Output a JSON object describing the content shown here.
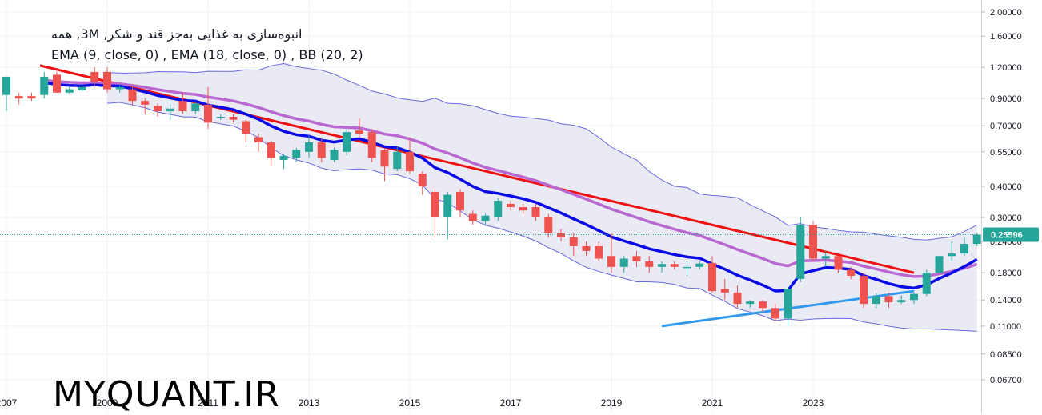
{
  "legend": {
    "title_line": "انبوه‌سازی به غذایی به‌جز قند و شکر, 3M, همه",
    "indicators_line": "EMA (9, close, 0) , EMA (18, close, 0) , BB (20, 2)"
  },
  "watermark": "MYQUANT.IR",
  "colors": {
    "up": "#26a69a",
    "down": "#ef5350",
    "ema_fast": "#0a0ae6",
    "ema_slow": "#b868d0",
    "bb_band": "#6a6ae0",
    "bb_fill": "#e6e6f2",
    "trend_resistance": "#ee1111",
    "trend_support": "#3399ee",
    "price_badge": "#26a69a",
    "grid": "#eef0f3"
  },
  "chart_data": {
    "type": "candlestick",
    "y_scale": "log",
    "ylim": [
      0.06,
      2.2
    ],
    "y_ticks": [
      "2.00000",
      "1.60000",
      "1.20000",
      "0.90000",
      "0.70000",
      "0.55000",
      "0.40000",
      "0.30000",
      "0.24000",
      "0.18000",
      "0.14000",
      "0.11000",
      "0.08500",
      "0.06700"
    ],
    "x_ticks": [
      "2007",
      "2009",
      "2011",
      "2013",
      "2015",
      "2017",
      "2019",
      "2021",
      "2023"
    ],
    "last_price_label": "0.25596",
    "last_price": 0.25596,
    "x_start": "2007-01",
    "period_months": 3,
    "candles": [
      [
        0.93,
        1.1,
        0.8,
        1.1
      ],
      [
        0.92,
        0.9,
        0.85,
        0.95
      ],
      [
        0.92,
        0.9,
        0.88,
        0.95
      ],
      [
        0.93,
        1.1,
        0.9,
        1.15
      ],
      [
        1.12,
        0.95,
        0.95,
        1.15
      ],
      [
        0.95,
        0.98,
        0.94,
        1.0
      ],
      [
        0.97,
        1.0,
        0.96,
        1.02
      ],
      [
        1.15,
        1.05,
        1.0,
        1.2
      ],
      [
        1.15,
        0.98,
        0.95,
        1.2
      ],
      [
        0.98,
        1.0,
        0.95,
        1.02
      ],
      [
        0.98,
        0.88,
        0.85,
        1.0
      ],
      [
        0.88,
        0.85,
        0.78,
        0.9
      ],
      [
        0.84,
        0.8,
        0.76,
        0.86
      ],
      [
        0.8,
        0.82,
        0.74,
        0.85
      ],
      [
        0.88,
        0.8,
        0.78,
        0.95
      ],
      [
        0.8,
        0.86,
        0.78,
        0.88
      ],
      [
        0.85,
        0.72,
        0.68,
        1.0
      ],
      [
        0.75,
        0.76,
        0.74,
        0.78
      ],
      [
        0.76,
        0.74,
        0.72,
        0.78
      ],
      [
        0.73,
        0.65,
        0.6,
        0.74
      ],
      [
        0.63,
        0.6,
        0.55,
        0.65
      ],
      [
        0.6,
        0.52,
        0.48,
        0.61
      ],
      [
        0.51,
        0.53,
        0.47,
        0.54
      ],
      [
        0.52,
        0.56,
        0.5,
        0.57
      ],
      [
        0.55,
        0.6,
        0.52,
        0.64
      ],
      [
        0.6,
        0.52,
        0.5,
        0.62
      ],
      [
        0.51,
        0.56,
        0.5,
        0.57
      ],
      [
        0.55,
        0.66,
        0.53,
        0.68
      ],
      [
        0.67,
        0.65,
        0.63,
        0.75
      ],
      [
        0.66,
        0.52,
        0.5,
        0.68
      ],
      [
        0.56,
        0.48,
        0.42,
        0.57
      ],
      [
        0.47,
        0.55,
        0.46,
        0.58
      ],
      [
        0.55,
        0.46,
        0.45,
        0.63
      ],
      [
        0.45,
        0.4,
        0.37,
        0.46
      ],
      [
        0.38,
        0.3,
        0.25,
        0.39
      ],
      [
        0.3,
        0.37,
        0.245,
        0.38
      ],
      [
        0.38,
        0.32,
        0.3,
        0.39
      ],
      [
        0.31,
        0.29,
        0.28,
        0.32
      ],
      [
        0.29,
        0.305,
        0.28,
        0.31
      ],
      [
        0.3,
        0.35,
        0.29,
        0.36
      ],
      [
        0.34,
        0.33,
        0.32,
        0.35
      ],
      [
        0.33,
        0.32,
        0.31,
        0.34
      ],
      [
        0.33,
        0.3,
        0.29,
        0.34
      ],
      [
        0.3,
        0.26,
        0.25,
        0.31
      ],
      [
        0.26,
        0.25,
        0.24,
        0.27
      ],
      [
        0.25,
        0.23,
        0.21,
        0.26
      ],
      [
        0.23,
        0.22,
        0.21,
        0.24
      ],
      [
        0.23,
        0.205,
        0.2,
        0.24
      ],
      [
        0.21,
        0.19,
        0.18,
        0.26
      ],
      [
        0.19,
        0.205,
        0.18,
        0.21
      ],
      [
        0.21,
        0.2,
        0.19,
        0.22
      ],
      [
        0.2,
        0.19,
        0.18,
        0.21
      ],
      [
        0.19,
        0.195,
        0.18,
        0.2
      ],
      [
        0.195,
        0.19,
        0.185,
        0.2
      ],
      [
        0.19,
        0.19,
        0.175,
        0.2
      ],
      [
        0.19,
        0.196,
        0.185,
        0.2
      ],
      [
        0.197,
        0.152,
        0.15,
        0.21
      ],
      [
        0.155,
        0.15,
        0.14,
        0.17
      ],
      [
        0.15,
        0.135,
        0.13,
        0.16
      ],
      [
        0.135,
        0.138,
        0.13,
        0.14
      ],
      [
        0.138,
        0.13,
        0.125,
        0.14
      ],
      [
        0.13,
        0.118,
        0.115,
        0.135
      ],
      [
        0.118,
        0.155,
        0.11,
        0.16
      ],
      [
        0.17,
        0.28,
        0.165,
        0.3
      ],
      [
        0.28,
        0.205,
        0.2,
        0.29
      ],
      [
        0.205,
        0.21,
        0.19,
        0.22
      ],
      [
        0.21,
        0.185,
        0.18,
        0.21
      ],
      [
        0.185,
        0.175,
        0.17,
        0.19
      ],
      [
        0.175,
        0.135,
        0.13,
        0.18
      ],
      [
        0.135,
        0.145,
        0.13,
        0.15
      ],
      [
        0.145,
        0.137,
        0.13,
        0.15
      ],
      [
        0.137,
        0.14,
        0.135,
        0.146
      ],
      [
        0.14,
        0.148,
        0.135,
        0.15
      ],
      [
        0.148,
        0.18,
        0.145,
        0.185
      ],
      [
        0.18,
        0.21,
        0.18,
        0.21
      ],
      [
        0.21,
        0.215,
        0.2,
        0.24
      ],
      [
        0.215,
        0.235,
        0.21,
        0.25
      ],
      [
        0.235,
        0.256,
        0.23,
        0.26
      ]
    ],
    "series": [
      {
        "values": [],
        "type": "ema_fast"
      },
      {
        "values": [],
        "type": "ema_slow"
      }
    ],
    "trendlines": [
      {
        "kind": "resistance",
        "from": [
          "2007-09",
          1.22
        ],
        "to": [
          "2025-01",
          0.18
        ]
      },
      {
        "kind": "support",
        "from": [
          "2020-01",
          0.11
        ],
        "to": [
          "2025-01",
          0.152
        ]
      }
    ],
    "grid": true
  }
}
